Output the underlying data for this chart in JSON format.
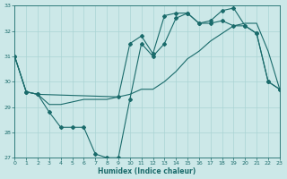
{
  "xlabel": "Humidex (Indice chaleur)",
  "bg_color": "#cce8e8",
  "grid_color": "#aad4d4",
  "line_color": "#1a6b6b",
  "xlim": [
    0,
    23
  ],
  "ylim": [
    27,
    33
  ],
  "yticks": [
    27,
    28,
    29,
    30,
    31,
    32,
    33
  ],
  "xticks": [
    0,
    1,
    2,
    3,
    4,
    5,
    6,
    7,
    8,
    9,
    10,
    11,
    12,
    13,
    14,
    15,
    16,
    17,
    18,
    19,
    20,
    21,
    22,
    23
  ],
  "curve_A_x": [
    0,
    1,
    2,
    3,
    4,
    5,
    6,
    7,
    8,
    9,
    10,
    11,
    12,
    13,
    14,
    15,
    16,
    17,
    18,
    19,
    20,
    21,
    22,
    23
  ],
  "curve_A_y": [
    31.0,
    29.6,
    29.5,
    28.8,
    28.2,
    28.2,
    28.2,
    27.15,
    27.0,
    27.0,
    29.3,
    31.5,
    31.0,
    31.5,
    32.5,
    32.7,
    32.3,
    32.3,
    32.4,
    32.2,
    32.2,
    31.9,
    30.0,
    29.7
  ],
  "curve_B_x": [
    0,
    1,
    2,
    3,
    4,
    5,
    6,
    7,
    8,
    9,
    10,
    11,
    12,
    13,
    14,
    15,
    16,
    17,
    18,
    19,
    20,
    21,
    22,
    23
  ],
  "curve_B_y": [
    31.0,
    29.6,
    29.5,
    29.1,
    29.1,
    29.2,
    29.3,
    29.3,
    29.3,
    29.4,
    29.5,
    29.7,
    29.7,
    30.0,
    30.4,
    30.9,
    31.2,
    31.6,
    31.9,
    32.2,
    32.3,
    32.3,
    31.2,
    29.7
  ],
  "curve_C_x": [
    0,
    1,
    2,
    9,
    10,
    11,
    12,
    13,
    14,
    15,
    16,
    17,
    18,
    19,
    20,
    21,
    22,
    23
  ],
  "curve_C_y": [
    31.0,
    29.6,
    29.5,
    29.4,
    31.5,
    31.8,
    31.1,
    32.6,
    32.7,
    32.7,
    32.3,
    32.4,
    32.8,
    32.9,
    32.2,
    31.9,
    30.0,
    29.7
  ],
  "marker_size": 2.0,
  "lw": 0.8
}
